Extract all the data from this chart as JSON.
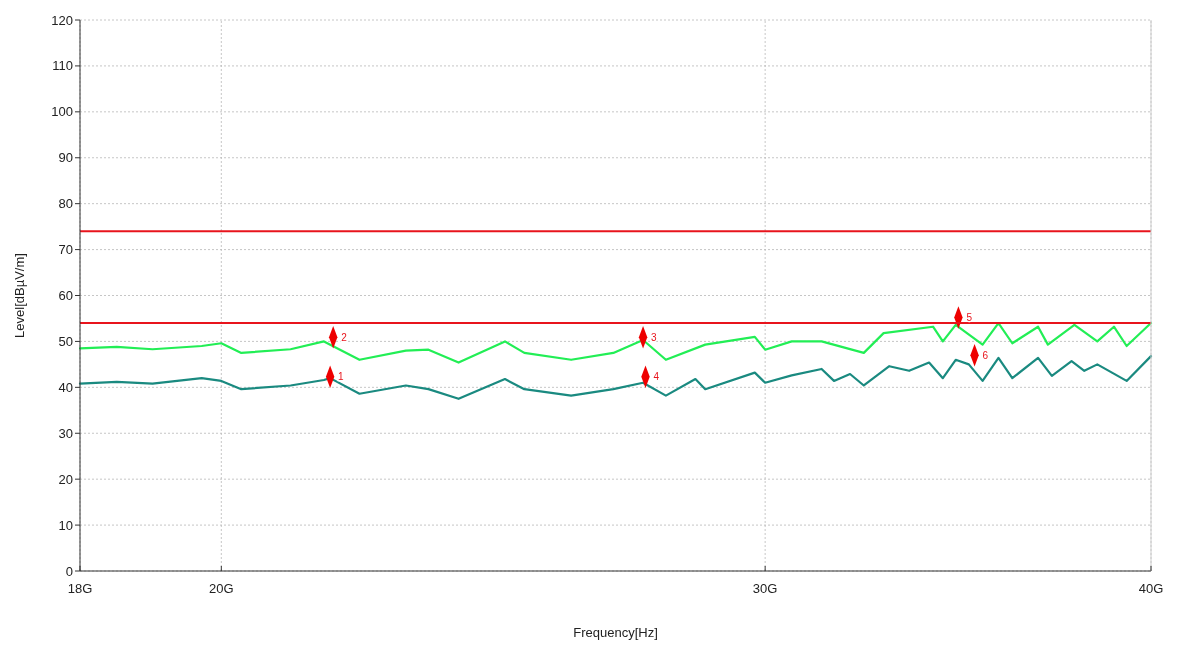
{
  "chart_data": {
    "type": "line",
    "xlabel": "Frequency[Hz]",
    "ylabel": "Level[dBµV/m]",
    "log": "x",
    "grid": true,
    "line_style": "solid",
    "marker": "none",
    "xlim": [
      18,
      40
    ],
    "xticks": [
      {
        "value": 18,
        "label": "18G"
      },
      {
        "value": 20,
        "label": "20G"
      },
      {
        "value": 30,
        "label": "30G"
      },
      {
        "value": 40,
        "label": "40G"
      }
    ],
    "ylim": [
      0,
      120
    ],
    "yticks": [
      0,
      10,
      20,
      30,
      40,
      50,
      60,
      70,
      80,
      90,
      100,
      110,
      120
    ],
    "ref_lines": [
      {
        "axis": "y",
        "value": 74,
        "color": "#e8141c"
      },
      {
        "axis": "y",
        "value": 54,
        "color": "#e8141c"
      }
    ],
    "series": [
      {
        "color": "#22ee55",
        "x": [
          18,
          18.5,
          19,
          19.71,
          20,
          20.3,
          21.06,
          21.59,
          22.17,
          22.95,
          23.34,
          23.87,
          24.71,
          25.07,
          25.96,
          26.79,
          27.39,
          27.86,
          28.69,
          29.77,
          30,
          30.6,
          31.29,
          32.29,
          32.77,
          34,
          34.25,
          34.58,
          35.28,
          35.7,
          36.07,
          36.77,
          37.04,
          37.78,
          38.43,
          38.91,
          39.28,
          40
        ],
        "values": [
          48.5,
          48.8,
          48.3,
          49,
          49.6,
          47.5,
          48.3,
          50,
          46,
          48,
          48.2,
          45.4,
          50,
          47.5,
          46,
          47.5,
          50.3,
          46,
          49.3,
          51,
          48.2,
          50,
          50,
          47.5,
          51.8,
          53.2,
          50,
          53.6,
          49.3,
          54,
          49.6,
          53.2,
          49.3,
          53.6,
          50,
          53.2,
          49,
          54
        ]
      },
      {
        "color": "#1a8a80",
        "x": [
          18,
          18.5,
          19,
          19.71,
          20,
          20.3,
          21.06,
          21.59,
          21.69,
          22.17,
          22.95,
          23.34,
          23.87,
          24.71,
          25.07,
          25.96,
          26.79,
          27.39,
          27.86,
          28.48,
          28.69,
          29.77,
          30,
          30.6,
          31.29,
          31.58,
          31.96,
          32.29,
          32.91,
          33.4,
          33.9,
          34.25,
          34.58,
          34.92,
          35.28,
          35.7,
          36.07,
          36.77,
          37.15,
          37.7,
          38.06,
          38.43,
          39.28,
          40
        ],
        "values": [
          40.8,
          41.2,
          40.8,
          42,
          41.4,
          39.6,
          40.4,
          41.6,
          42,
          38.6,
          40.4,
          39.6,
          37.5,
          41.8,
          39.6,
          38.2,
          39.6,
          41,
          38.2,
          41.8,
          39.6,
          43.2,
          41,
          42.6,
          44,
          41.4,
          42.9,
          40.4,
          44.6,
          43.6,
          45.4,
          42,
          46,
          45,
          41.4,
          46.4,
          42,
          46.4,
          42.5,
          45.7,
          43.6,
          45,
          41.4,
          46.8
        ]
      },
      {
        "type": "scatter",
        "marker": "diamond",
        "color": "#ee0000",
        "x": [
          21.69,
          21.74,
          27.39,
          27.44,
          34.65,
          35.07
        ],
        "values": [
          42.3,
          50.9,
          50.9,
          42.3,
          55.2,
          47
        ]
      }
    ],
    "annotations": [
      {
        "text": "1",
        "x": 21.69,
        "y": 42.3
      },
      {
        "text": "2",
        "x": 21.74,
        "y": 50.9
      },
      {
        "text": "3",
        "x": 27.39,
        "y": 50.9
      },
      {
        "text": "4",
        "x": 27.44,
        "y": 42.3
      },
      {
        "text": "5",
        "x": 34.65,
        "y": 55.2
      },
      {
        "text": "6",
        "x": 35.07,
        "y": 47
      }
    ]
  }
}
